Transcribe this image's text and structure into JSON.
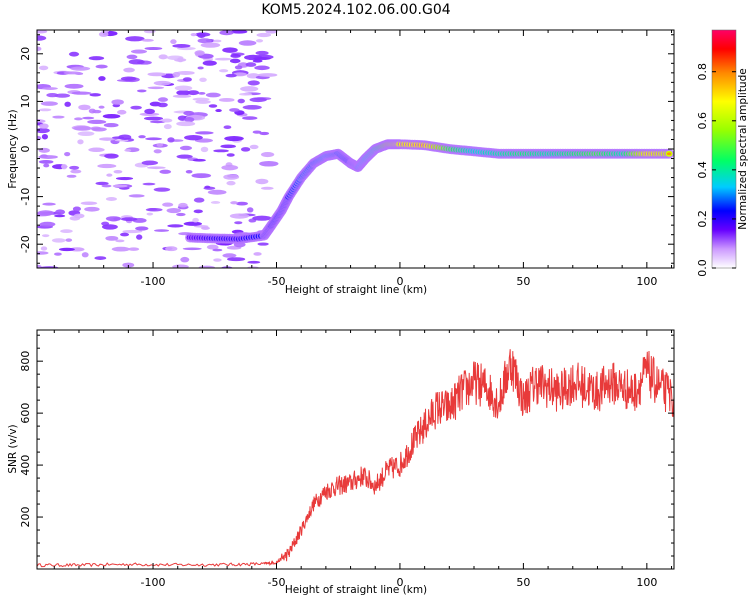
{
  "title": "KOM5.2024.102.06.00.G04",
  "chart_data": [
    {
      "type": "heatmap",
      "xlabel": "Height of straight line (km)",
      "ylabel": "Frequency (Hz)",
      "xlim": [
        -147,
        111
      ],
      "ylim": [
        -25,
        25
      ],
      "xticks": [
        -100,
        -50,
        0,
        50,
        100
      ],
      "yticks": [
        -20,
        -10,
        0,
        10,
        20
      ],
      "colorbar": {
        "label": "Normalized spectral amplitude",
        "range": [
          0,
          0.97
        ],
        "ticks": [
          "0.0",
          "0.2",
          "0.4",
          "0.6",
          "0.8"
        ],
        "tick_values": [
          0.0,
          0.2,
          0.4,
          0.6,
          0.8
        ],
        "colors": [
          "#ffffff",
          "#cc99ff",
          "#6600ff",
          "#0000ff",
          "#00ccff",
          "#00ff66",
          "#99ff00",
          "#ffff00",
          "#ff8800",
          "#ff0000",
          "#ff0066"
        ]
      },
      "ridge": {
        "x": [
          -85,
          -75,
          -65,
          -55,
          -52,
          -48,
          -45,
          -40,
          -35,
          -30,
          -25,
          -20,
          -17,
          -14,
          -10,
          -5,
          0,
          10,
          20,
          30,
          40,
          50,
          60,
          70,
          80,
          90,
          100,
          110
        ],
        "y": [
          -18.6,
          -18.8,
          -18.9,
          -18.2,
          -16,
          -13,
          -10,
          -6,
          -3,
          -1.5,
          -1,
          -3,
          -3.8,
          -2,
          0,
          1,
          1,
          0.8,
          0,
          -0.5,
          -1,
          -1,
          -1,
          -1,
          -1,
          -1,
          -1,
          -1
        ],
        "amplitude": [
          0.2,
          0.25,
          0.25,
          0.3,
          0.28,
          0.3,
          0.3,
          0.35,
          0.35,
          0.4,
          0.35,
          0.3,
          0.4,
          0.45,
          0.5,
          0.7,
          0.85,
          0.9,
          0.6,
          0.45,
          0.5,
          0.55,
          0.5,
          0.55,
          0.6,
          0.5,
          0.85,
          0.8
        ]
      }
    },
    {
      "type": "line",
      "xlabel": "Height of straight line (km)",
      "ylabel": "SNR (v/v)",
      "xlim": [
        -147,
        111
      ],
      "ylim": [
        0,
        920
      ],
      "xticks": [
        -100,
        -50,
        0,
        50,
        100
      ],
      "yticks": [
        200,
        400,
        600,
        800
      ],
      "color": "#e83a3a",
      "x": [
        -147,
        -130,
        -110,
        -90,
        -70,
        -55,
        -50,
        -45,
        -40,
        -35,
        -30,
        -25,
        -20,
        -15,
        -10,
        -5,
        0,
        5,
        10,
        15,
        20,
        25,
        30,
        35,
        40,
        45,
        50,
        55,
        60,
        65,
        70,
        75,
        80,
        85,
        90,
        95,
        100,
        105,
        111
      ],
      "y": [
        15,
        15,
        18,
        16,
        17,
        20,
        25,
        60,
        150,
        250,
        300,
        320,
        330,
        360,
        320,
        380,
        400,
        480,
        550,
        620,
        620,
        680,
        720,
        700,
        640,
        800,
        650,
        720,
        700,
        680,
        720,
        700,
        680,
        720,
        700,
        680,
        760,
        700,
        660
      ]
    }
  ]
}
